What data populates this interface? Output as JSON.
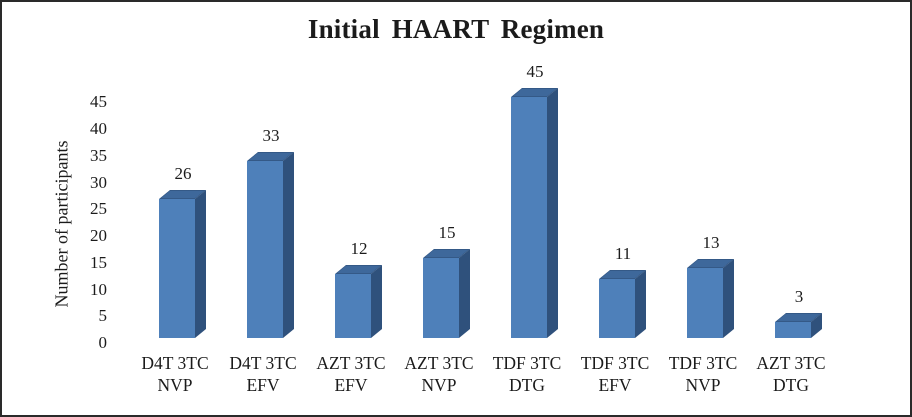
{
  "frame": {
    "background": "#ffffff",
    "border_color": "#2a2a2a"
  },
  "chart_data": {
    "type": "bar",
    "style": "3d-column",
    "title": "Initial HAART Regimen",
    "xlabel": "",
    "ylabel": "Number of participants",
    "categories": [
      "D4T 3TC NVP",
      "D4T 3TC EFV",
      "AZT 3TC EFV",
      "AZT 3TC NVP",
      "TDF 3TC DTG",
      "TDF 3TC EFV",
      "TDF 3TC NVP",
      "AZT 3TC DTG"
    ],
    "values": [
      26,
      33,
      12,
      15,
      45,
      11,
      13,
      3
    ],
    "data_labels": [
      "26",
      "33",
      "12",
      "15",
      "45",
      "11",
      "13",
      "3"
    ],
    "y_ticks": [
      "0",
      "5",
      "10",
      "15",
      "20",
      "25",
      "30",
      "35",
      "40",
      "45"
    ],
    "ylim": [
      0,
      45
    ],
    "grid": false,
    "legend": false,
    "colors": {
      "bar_front": "#4E80BA",
      "bar_top": "#3E689B",
      "bar_side": "#2F517C",
      "text": "#1b1b1b"
    }
  }
}
